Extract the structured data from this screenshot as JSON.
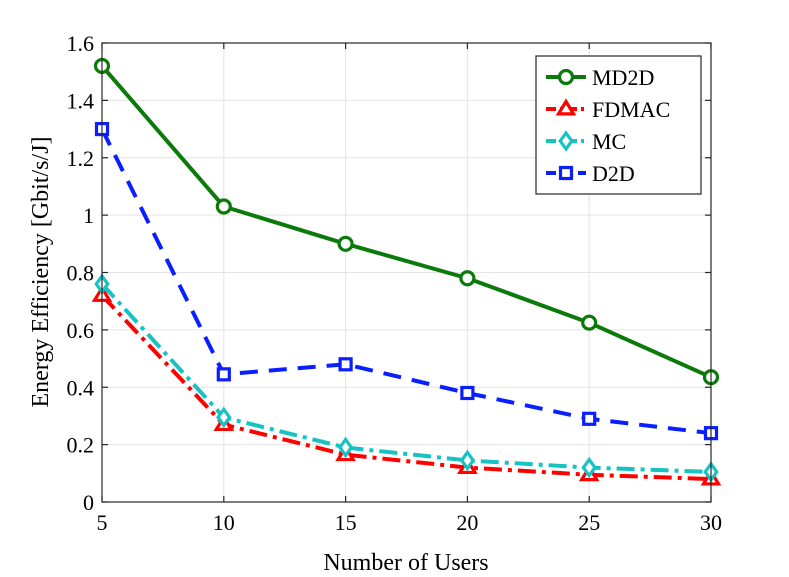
{
  "chart_data": {
    "type": "line",
    "title": "",
    "xlabel": "Number of Users",
    "ylabel": "Energy Efficiency [Gbit/s/J]",
    "x": [
      5,
      10,
      15,
      20,
      25,
      30
    ],
    "xlim": [
      5,
      30
    ],
    "ylim": [
      0,
      1.6
    ],
    "xticks": [
      "5",
      "10",
      "15",
      "20",
      "25",
      "30"
    ],
    "yticks": [
      "0",
      "0.2",
      "0.4",
      "0.6",
      "0.8",
      "1",
      "1.2",
      "1.4",
      "1.6"
    ],
    "grid": true,
    "legend_position": "top-right",
    "series": [
      {
        "name": "MD2D",
        "values": [
          1.52,
          1.03,
          0.9,
          0.78,
          0.625,
          0.435
        ],
        "color": "#0b7a0b",
        "marker": "circle",
        "dash": "solid"
      },
      {
        "name": "FDMAC",
        "values": [
          0.72,
          0.27,
          0.165,
          0.12,
          0.095,
          0.08
        ],
        "color": "#ff0000",
        "marker": "triangle",
        "dash": "dashdot"
      },
      {
        "name": "MC",
        "values": [
          0.76,
          0.295,
          0.19,
          0.145,
          0.12,
          0.105
        ],
        "color": "#16c2c2",
        "marker": "diamond",
        "dash": "dashdot"
      },
      {
        "name": "D2D",
        "values": [
          1.3,
          0.445,
          0.48,
          0.38,
          0.29,
          0.24
        ],
        "color": "#0a1fff",
        "marker": "square",
        "dash": "dash"
      }
    ]
  }
}
